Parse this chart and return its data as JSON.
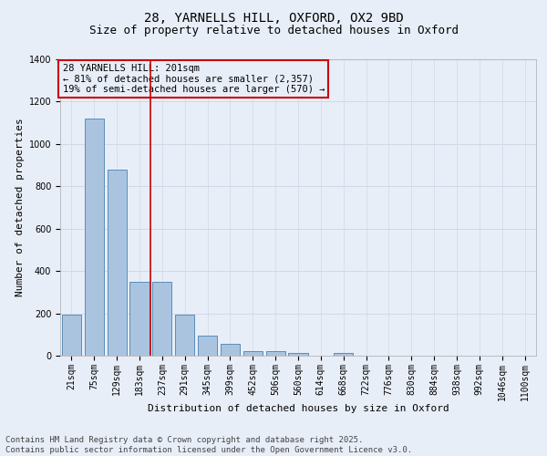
{
  "title_line1": "28, YARNELLS HILL, OXFORD, OX2 9BD",
  "title_line2": "Size of property relative to detached houses in Oxford",
  "xlabel": "Distribution of detached houses by size in Oxford",
  "ylabel": "Number of detached properties",
  "categories": [
    "21sqm",
    "75sqm",
    "129sqm",
    "183sqm",
    "237sqm",
    "291sqm",
    "345sqm",
    "399sqm",
    "452sqm",
    "506sqm",
    "560sqm",
    "614sqm",
    "668sqm",
    "722sqm",
    "776sqm",
    "830sqm",
    "884sqm",
    "938sqm",
    "992sqm",
    "1046sqm",
    "1100sqm"
  ],
  "values": [
    195,
    1120,
    880,
    350,
    350,
    195,
    95,
    57,
    22,
    20,
    15,
    0,
    12,
    0,
    0,
    0,
    0,
    0,
    0,
    0,
    0
  ],
  "bar_color": "#aac4e0",
  "bar_edge_color": "#5b8db8",
  "grid_color": "#d0d8e8",
  "bg_color": "#e8eef8",
  "annotation_box_color": "#cc0000",
  "vline_color": "#cc0000",
  "vline_position": 3.5,
  "annotation_text_line1": "28 YARNELLS HILL: 201sqm",
  "annotation_text_line2": "← 81% of detached houses are smaller (2,357)",
  "annotation_text_line3": "19% of semi-detached houses are larger (570) →",
  "footer_line1": "Contains HM Land Registry data © Crown copyright and database right 2025.",
  "footer_line2": "Contains public sector information licensed under the Open Government Licence v3.0.",
  "ylim": [
    0,
    1400
  ],
  "yticks": [
    0,
    200,
    400,
    600,
    800,
    1000,
    1200,
    1400
  ],
  "title_fontsize": 10,
  "subtitle_fontsize": 9,
  "axis_label_fontsize": 8,
  "tick_fontsize": 7,
  "annotation_fontsize": 7.5,
  "footer_fontsize": 6.5
}
